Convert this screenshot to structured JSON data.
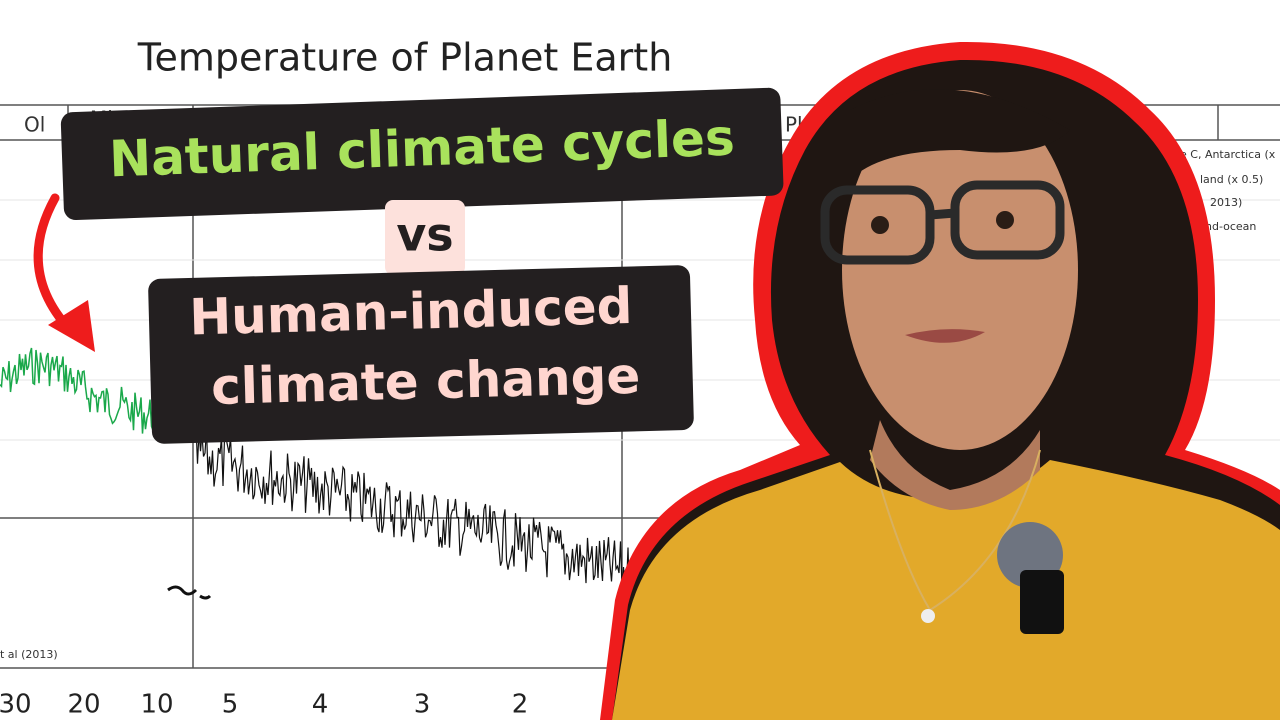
{
  "background_chart": {
    "title": "Temperature of Planet Earth",
    "period_labels": [
      "Ol",
      "Miocene",
      "Pleis"
    ],
    "x_axis_labels": [
      "30",
      "20",
      "10",
      "5",
      "4",
      "3",
      "2"
    ],
    "legend_fragments": [
      "e C, Antarctica (x",
      "land (x 0.5)",
      "2013)",
      "nd-ocean"
    ],
    "source": "t al (2013)"
  },
  "captions": {
    "line1": "Natural climate cycles",
    "vs": "vs",
    "line2a": "Human-induced",
    "line2b": "climate change"
  }
}
